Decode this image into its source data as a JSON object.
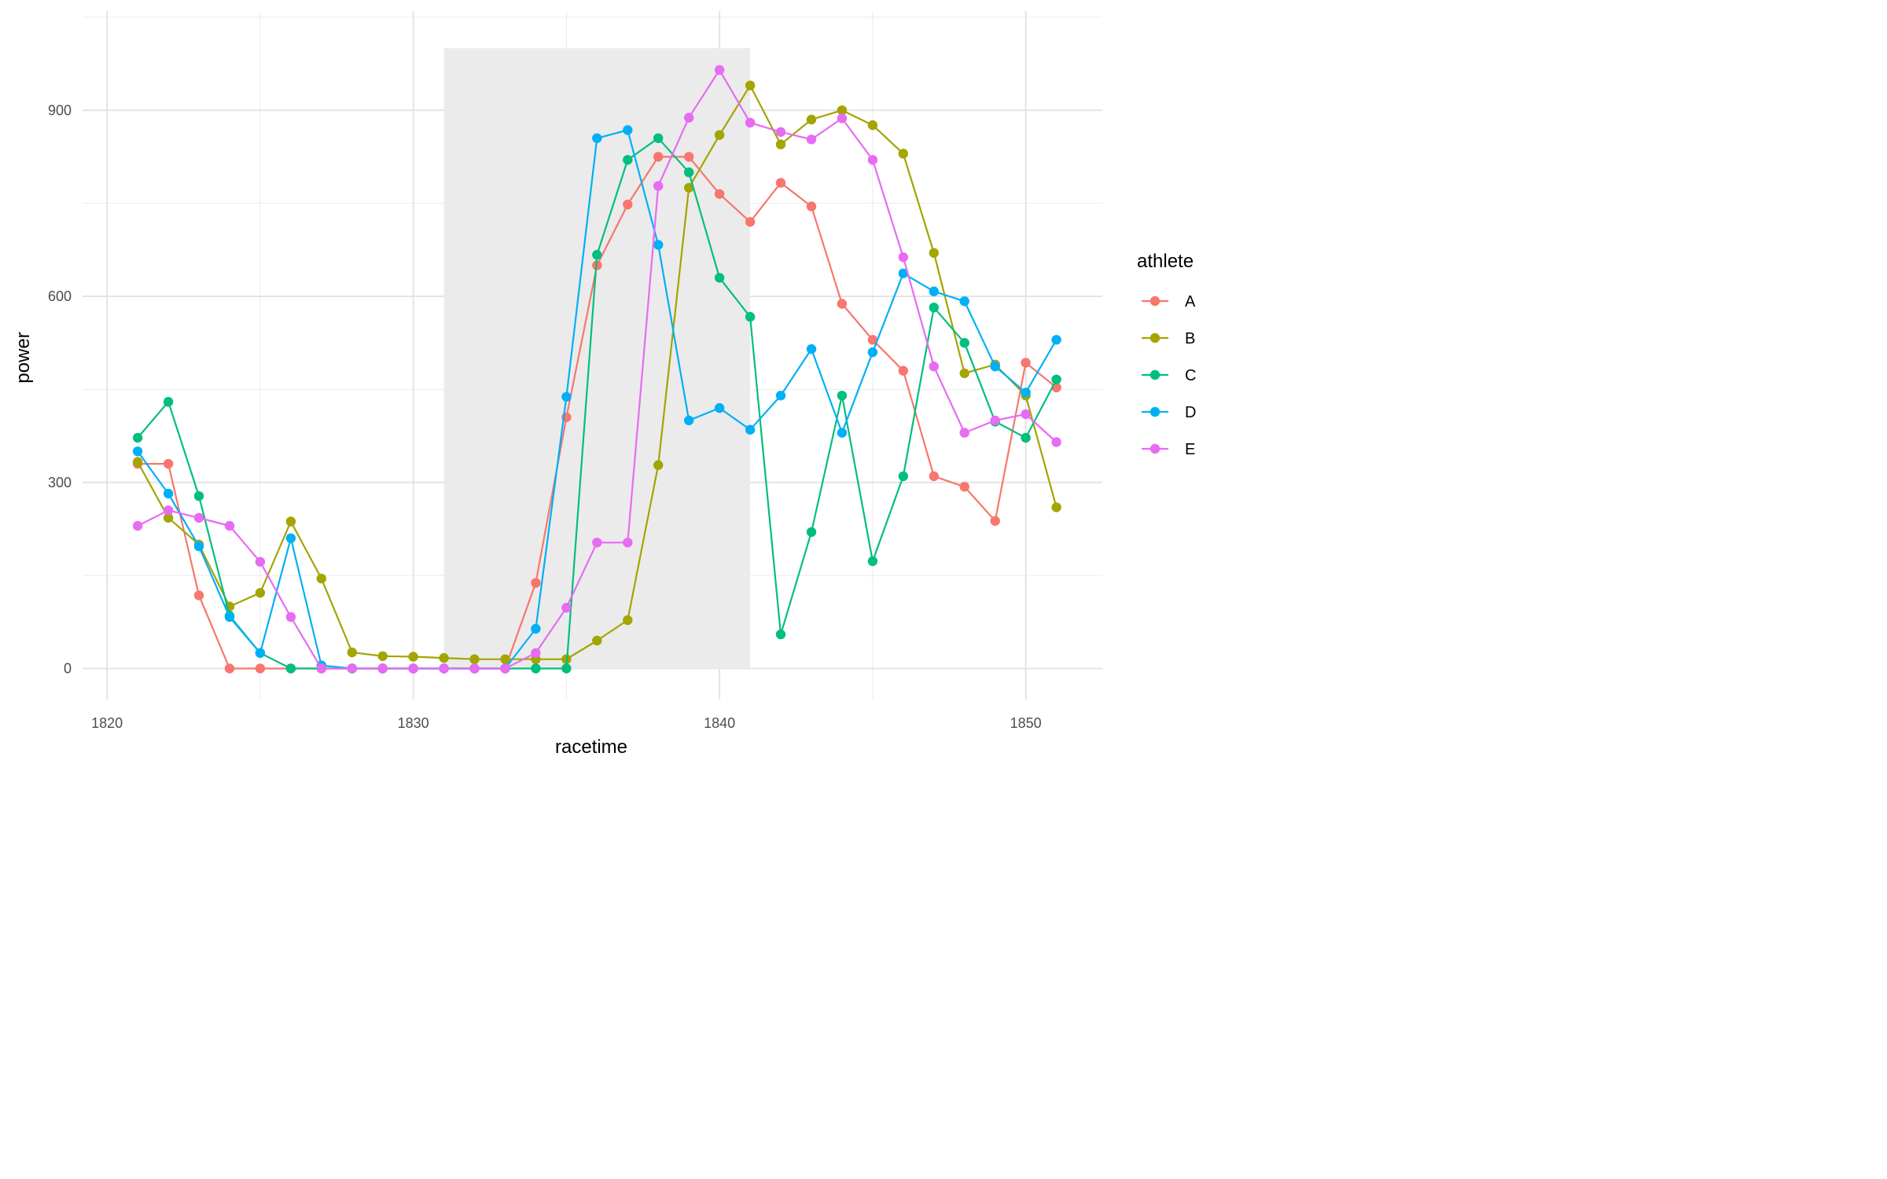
{
  "chart_data": {
    "type": "line",
    "xlabel": "racetime",
    "ylabel": "power",
    "xlim": [
      1819.2,
      1852.5
    ],
    "ylim": [
      -50,
      1060
    ],
    "xticks": [
      1820,
      1830,
      1840,
      1850
    ],
    "yticks": [
      0,
      300,
      600,
      900
    ],
    "grid": true,
    "highlight": {
      "x_start": 1831,
      "x_end": 1841,
      "y_start": 0,
      "y_end": 1000,
      "color": "#ebebeb"
    },
    "x": [
      1821,
      1822,
      1823,
      1824,
      1825,
      1826,
      1827,
      1828,
      1829,
      1830,
      1831,
      1832,
      1833,
      1834,
      1835,
      1836,
      1837,
      1838,
      1839,
      1840,
      1841,
      1842,
      1843,
      1844,
      1845,
      1846,
      1847,
      1848,
      1849,
      1850,
      1851
    ],
    "legend": {
      "title": "athlete",
      "position": "right"
    },
    "series": [
      {
        "name": "A",
        "color": "#F8766D",
        "values": [
          330,
          330,
          118,
          0,
          0,
          0,
          0,
          0,
          0,
          0,
          0,
          0,
          0,
          138,
          405,
          650,
          748,
          825,
          825,
          765,
          720,
          783,
          745,
          588,
          530,
          480,
          310,
          293,
          238,
          493,
          453
        ]
      },
      {
        "name": "B",
        "color": "#A3A500",
        "values": [
          333,
          243,
          200,
          100,
          122,
          237,
          145,
          26,
          20,
          19,
          17,
          15,
          15,
          15,
          15,
          45,
          78,
          328,
          775,
          860,
          940,
          845,
          885,
          900,
          876,
          830,
          670,
          476,
          490,
          440,
          260
        ]
      },
      {
        "name": "C",
        "color": "#00BF7D",
        "values": [
          372,
          430,
          278,
          85,
          25,
          0,
          0,
          0,
          0,
          0,
          0,
          0,
          0,
          0,
          0,
          667,
          820,
          855,
          800,
          630,
          567,
          55,
          220,
          440,
          173,
          310,
          582,
          525,
          398,
          372,
          466
        ]
      },
      {
        "name": "D",
        "color": "#00B0F6",
        "values": [
          350,
          282,
          197,
          83,
          25,
          210,
          5,
          0,
          0,
          0,
          0,
          0,
          0,
          64,
          438,
          855,
          868,
          683,
          400,
          420,
          385,
          440,
          515,
          380,
          510,
          637,
          608,
          592,
          487,
          445,
          530
        ]
      },
      {
        "name": "E",
        "color": "#E76BF3",
        "values": [
          230,
          255,
          243,
          230,
          172,
          83,
          0,
          0,
          0,
          0,
          0,
          0,
          0,
          25,
          98,
          203,
          203,
          778,
          888,
          965,
          880,
          865,
          853,
          887,
          820,
          663,
          487,
          380,
          400,
          410,
          365
        ]
      }
    ]
  }
}
